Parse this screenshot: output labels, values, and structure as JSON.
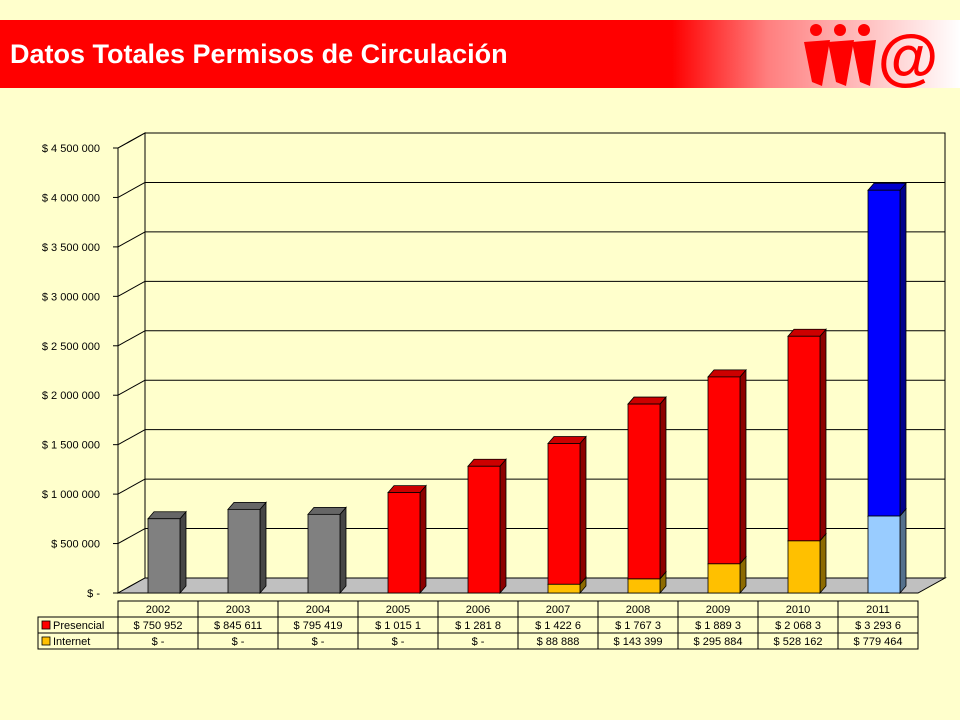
{
  "header": {
    "title": "Datos Totales Permisos de Circulación"
  },
  "colors": {
    "background": "#ffffcc",
    "banner": "#ff0000",
    "gray_bars": "#808080",
    "presencial": "#ff0000",
    "internet": "#ffc000",
    "presencial_2011": "#0000ff",
    "internet_2011": "#99ccff"
  },
  "chart_data": {
    "type": "bar",
    "stacked": true,
    "three_d": true,
    "categories": [
      "2002",
      "2003",
      "2004",
      "2005",
      "2006",
      "2007",
      "2008",
      "2009",
      "2010",
      "2011"
    ],
    "series": [
      {
        "name": "Presencial",
        "color": "#ff0000",
        "values": [
          750952,
          845611,
          795419,
          1015100,
          1281800,
          1422600,
          1767300,
          1889300,
          2068300,
          3293600
        ],
        "table_labels": [
          "$ 750 952",
          "$ 845 611",
          "$ 795 419",
          "$ 1 015 1",
          "$ 1 281 8",
          "$ 1 422 6",
          "$ 1 767 3",
          "$ 1 889 3",
          "$ 2 068 3",
          "$ 3 293 6"
        ]
      },
      {
        "name": "Internet",
        "color": "#ffc000",
        "values": [
          0,
          0,
          0,
          0,
          0,
          88888,
          143399,
          295884,
          528162,
          779464
        ],
        "table_labels": [
          "$ -",
          "$ -",
          "$ -",
          "$ -",
          "$ -",
          "$ 88 888",
          "$ 143 399",
          "$ 295 884",
          "$ 528 162",
          "$ 779 464"
        ]
      }
    ],
    "y_ticks": [
      "$ -",
      "$ 500 000",
      "$ 1 000 000",
      "$ 1 500 000",
      "$ 2 000 000",
      "$ 2 500 000",
      "$ 3 000 000",
      "$ 3 500 000",
      "$ 4 000 000",
      "$ 4 500 000"
    ],
    "ylim": [
      0,
      4500000
    ],
    "grid": true,
    "legend": "data-table"
  }
}
